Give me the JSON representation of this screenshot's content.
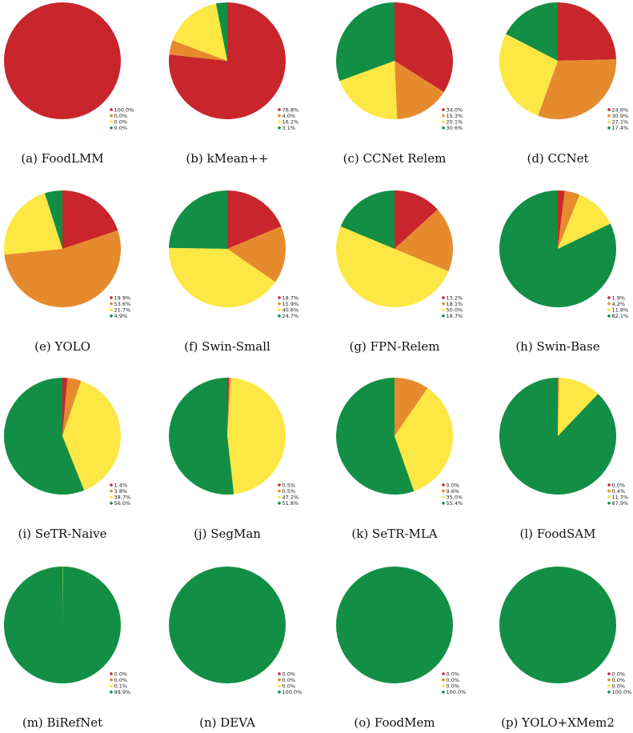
{
  "colors": {
    "red": "#c9252c",
    "orange": "#e68a2e",
    "yellow": "#fde744",
    "green": "#128f44"
  },
  "chart_data": [
    {
      "type": "pie",
      "caption": "(a) FoodLMM",
      "values": [
        100.0,
        0.0,
        0.0,
        0.0
      ],
      "labels": [
        "100.0%",
        "0.0%",
        "0.0%",
        "0.0%"
      ]
    },
    {
      "type": "pie",
      "caption": "(b) kMean++",
      "values": [
        76.8,
        4.0,
        16.2,
        3.1
      ],
      "labels": [
        "76.8%",
        "4.0%",
        "16.2%",
        "3.1%"
      ]
    },
    {
      "type": "pie",
      "caption": "(c) CCNet Relem",
      "values": [
        34.0,
        15.3,
        20.1,
        30.6
      ],
      "labels": [
        "34.0%",
        "15.3%",
        "20.1%",
        "30.6%"
      ]
    },
    {
      "type": "pie",
      "caption": "(d) CCNet",
      "values": [
        24.6,
        30.9,
        27.1,
        17.4
      ],
      "labels": [
        "24.6%",
        "30.9%",
        "27.1%",
        "17.4%"
      ]
    },
    {
      "type": "pie",
      "caption": "(e) YOLO",
      "values": [
        19.9,
        53.6,
        21.7,
        4.9
      ],
      "labels": [
        "19.9%",
        "53.6%",
        "21.7%",
        "4.9%"
      ]
    },
    {
      "type": "pie",
      "caption": "(f) Swin-Small",
      "values": [
        18.7,
        15.9,
        40.6,
        24.7
      ],
      "labels": [
        "18.7%",
        "15.9%",
        "40.6%",
        "24.7%"
      ]
    },
    {
      "type": "pie",
      "caption": "(g) FPN-Relem",
      "values": [
        13.2,
        18.1,
        50.0,
        18.7
      ],
      "labels": [
        "13.2%",
        "18.1%",
        "50.0%",
        "18.7%"
      ]
    },
    {
      "type": "pie",
      "caption": "(h) Swin-Base",
      "values": [
        1.9,
        4.2,
        11.8,
        82.1
      ],
      "labels": [
        "1.9%",
        "4.2%",
        "11.8%",
        "82.1%"
      ]
    },
    {
      "type": "pie",
      "caption": "(i) SeTR-Naive",
      "values": [
        1.4,
        3.8,
        38.7,
        56.0
      ],
      "labels": [
        "1.4%",
        "3.8%",
        "38.7%",
        "56.0%"
      ]
    },
    {
      "type": "pie",
      "caption": "(j) SegMan",
      "values": [
        0.5,
        0.5,
        47.2,
        51.8
      ],
      "labels": [
        "0.5%",
        "0.5%",
        "47.2%",
        "51.8%"
      ]
    },
    {
      "type": "pie",
      "caption": "(k) SeTR-MLA",
      "values": [
        0.0,
        9.6,
        35.0,
        55.4
      ],
      "labels": [
        "0.0%",
        "9.6%",
        "35.0%",
        "55.4%"
      ]
    },
    {
      "type": "pie",
      "caption": "(l) FoodSAM",
      "values": [
        0.0,
        0.4,
        11.7,
        87.9
      ],
      "labels": [
        "0.0%",
        "0.4%",
        "11.7%",
        "87.9%"
      ]
    },
    {
      "type": "pie",
      "caption": "(m) BiRefNet",
      "values": [
        0.0,
        0.0,
        0.1,
        99.9
      ],
      "labels": [
        "0.0%",
        "0.0%",
        "0.1%",
        "99.9%"
      ]
    },
    {
      "type": "pie",
      "caption": "(n) DEVA",
      "values": [
        0.0,
        0.0,
        0.0,
        100.0
      ],
      "labels": [
        "0.0%",
        "0.0%",
        "0.0%",
        "100.0%"
      ]
    },
    {
      "type": "pie",
      "caption": "(o) FoodMem",
      "values": [
        0.0,
        0.0,
        0.0,
        100.0
      ],
      "labels": [
        "0.0%",
        "0.0%",
        "0.0%",
        "100.0%"
      ]
    },
    {
      "type": "pie",
      "caption": "(p) YOLO+XMem2",
      "values": [
        0.0,
        0.0,
        0.0,
        100.0
      ],
      "labels": [
        "0.0%",
        "0.0%",
        "0.0%",
        "100.0%"
      ]
    }
  ]
}
